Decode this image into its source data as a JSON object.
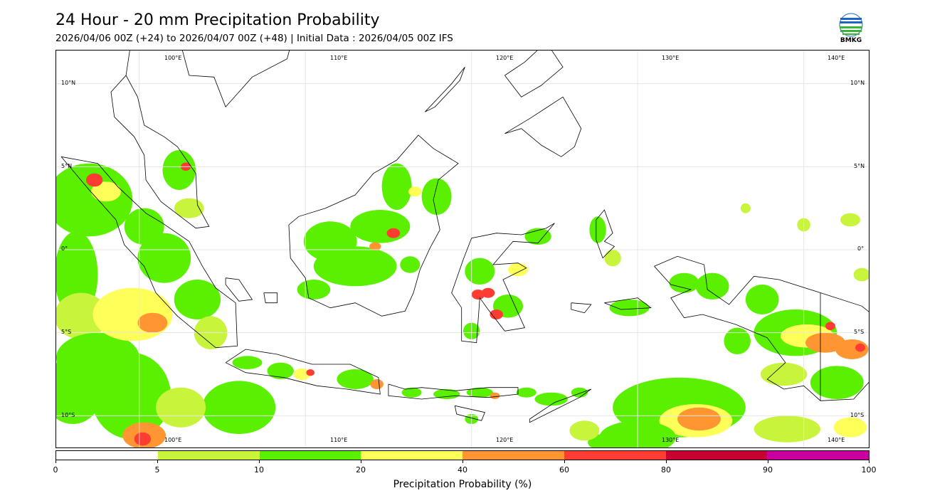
{
  "header": {
    "title": "24 Hour - 20 mm Precipitation Probability",
    "subtitle": "2026/04/06 00Z (+24) to 2026/04/07 00Z (+48) | Initial Data : 2026/04/05 00Z IFS",
    "logo_text": "BMKG"
  },
  "map": {
    "lon_labels": [
      "100°E",
      "110°E",
      "120°E",
      "130°E",
      "140°E"
    ],
    "lat_labels": [
      "10°N",
      "5°N",
      "0°",
      "5°S",
      "10°S"
    ],
    "lon_range": [
      95,
      144
    ],
    "lat_range": [
      12,
      -12
    ],
    "grid": true
  },
  "colorbar": {
    "ticks": [
      "0",
      "5",
      "10",
      "20",
      "40",
      "60",
      "80",
      "90",
      "100"
    ],
    "colors": [
      "#ffffff",
      "#c8f53c",
      "#5af000",
      "#ffff5a",
      "#ff9632",
      "#ff3c32",
      "#c80032",
      "#c800a0"
    ],
    "label": "Precipitation Probability (%)"
  }
}
